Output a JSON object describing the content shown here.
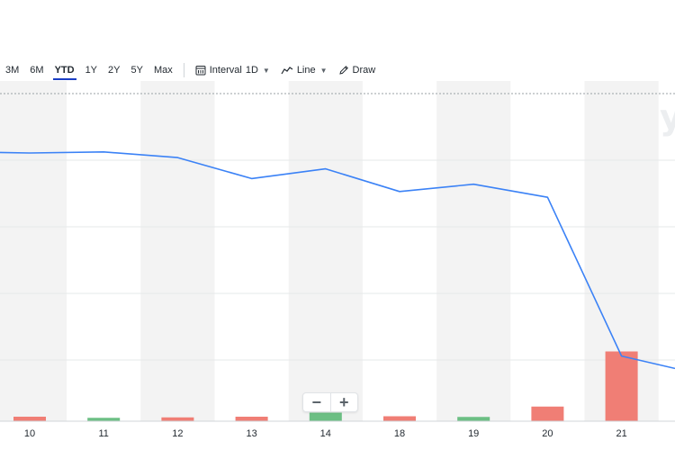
{
  "toolbar": {
    "ranges": [
      {
        "label": "3M",
        "active": false
      },
      {
        "label": "6M",
        "active": false
      },
      {
        "label": "YTD",
        "active": true
      },
      {
        "label": "1Y",
        "active": false
      },
      {
        "label": "2Y",
        "active": false
      },
      {
        "label": "5Y",
        "active": false
      },
      {
        "label": "Max",
        "active": false
      }
    ],
    "interval_label": "Interval",
    "interval_value": "1D",
    "chart_type_label": "Line",
    "draw_label": "Draw"
  },
  "zoom": {
    "minus": "−",
    "plus": "+"
  },
  "watermark": "y",
  "colors": {
    "line": "#3b82f6",
    "up_volume": "#6cbf84",
    "down_volume": "#f07e75",
    "band": "#f3f3f3",
    "active_underline": "#1a3ec4"
  },
  "chart_data": {
    "type": "line",
    "categories": [
      "10",
      "11",
      "12",
      "13",
      "14",
      "18",
      "19",
      "20",
      "21"
    ],
    "price": [
      92.3,
      92.5,
      91.5,
      87.8,
      89.5,
      85.5,
      86.8,
      84.5,
      56.5
    ],
    "price_after_last": 54.3,
    "price_before_first": 92.4,
    "volume": [
      {
        "value": 2.0,
        "direction": "down"
      },
      {
        "value": 1.5,
        "direction": "up"
      },
      {
        "value": 1.7,
        "direction": "down"
      },
      {
        "value": 2.0,
        "direction": "down"
      },
      {
        "value": 3.8,
        "direction": "up"
      },
      {
        "value": 2.2,
        "direction": "down"
      },
      {
        "value": 1.9,
        "direction": "up"
      },
      {
        "value": 6.5,
        "direction": "down"
      },
      {
        "value": 31.0,
        "direction": "down"
      }
    ],
    "ylim": [
      45,
      105
    ],
    "volume_max": 40,
    "grid": true
  }
}
